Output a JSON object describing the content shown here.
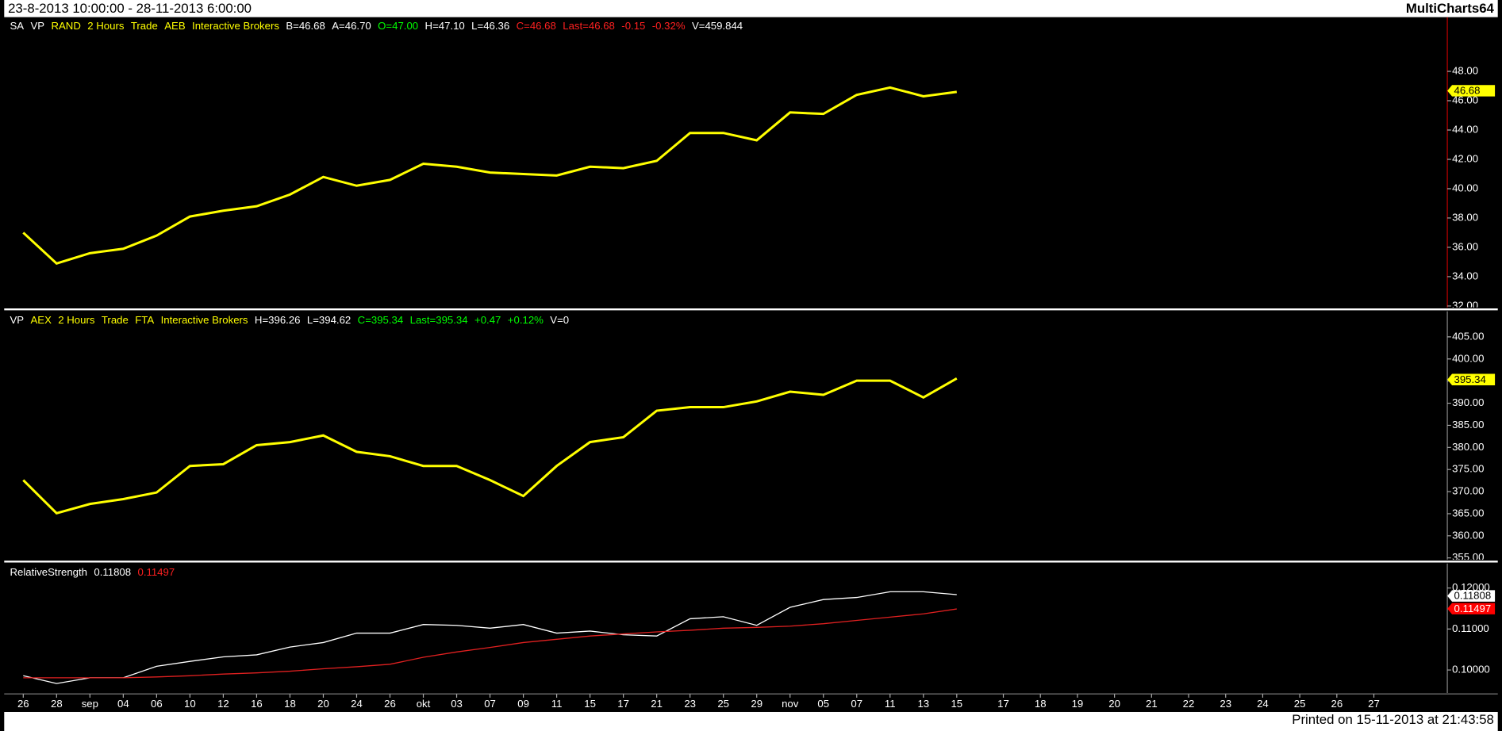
{
  "header": {
    "range": "23-8-2013 10:00:00 - 28-11-2013 6:00:00",
    "app": "MultiCharts64"
  },
  "footer": "Printed on 15-11-2013 at 21:43:58",
  "chart_data": [
    {
      "type": "line",
      "legend": [
        {
          "text": "SA",
          "color": "#ffffff"
        },
        {
          "text": "VP",
          "color": "#ffffff"
        },
        {
          "text": "RAND",
          "color": "#ffff00"
        },
        {
          "text": "2 Hours",
          "color": "#ffff00"
        },
        {
          "text": "Trade",
          "color": "#ffff00"
        },
        {
          "text": "AEB",
          "color": "#ffff00"
        },
        {
          "text": "Interactive Brokers",
          "color": "#ffff00"
        },
        {
          "text": "B=46.68",
          "color": "#ffffff"
        },
        {
          "text": "A=46.70",
          "color": "#ffffff"
        },
        {
          "text": "O=47.00",
          "color": "#00ff00"
        },
        {
          "text": "H=47.10",
          "color": "#ffffff"
        },
        {
          "text": "L=46.36",
          "color": "#ffffff"
        },
        {
          "text": "C=46.68",
          "color": "#ff2020"
        },
        {
          "text": "Last=46.68",
          "color": "#ff2020"
        },
        {
          "text": "-0.15",
          "color": "#ff2020"
        },
        {
          "text": "-0.32%",
          "color": "#ff2020"
        },
        {
          "text": "V=459.844",
          "color": "#ffffff"
        }
      ],
      "ylim": [
        31.9,
        51.7
      ],
      "yticks": [
        {
          "value": 32,
          "label": "32.00"
        },
        {
          "value": 34,
          "label": "34.00"
        },
        {
          "value": 36,
          "label": "36.00"
        },
        {
          "value": 38,
          "label": "38.00"
        },
        {
          "value": 40,
          "label": "40.00"
        },
        {
          "value": 42,
          "label": "42.00"
        },
        {
          "value": 44,
          "label": "44.00"
        },
        {
          "value": 46,
          "label": "46.00"
        },
        {
          "value": 48,
          "label": "48.00"
        }
      ],
      "series": [
        {
          "color": "#ffff00",
          "values": [
            37.0,
            34.9,
            35.6,
            35.9,
            36.8,
            38.1,
            38.5,
            38.8,
            39.6,
            40.8,
            40.2,
            40.6,
            41.7,
            41.5,
            41.1,
            41.0,
            40.9,
            41.5,
            41.4,
            41.9,
            43.8,
            43.8,
            43.3,
            45.2,
            45.1,
            46.4,
            46.9,
            46.3,
            46.6,
            null,
            null,
            null,
            null,
            null,
            null,
            null,
            null,
            null,
            null,
            null
          ]
        }
      ],
      "markers": [
        {
          "value": 46.68,
          "label": "46.68",
          "color": "#ffff00",
          "text_color": "#000000"
        }
      ]
    },
    {
      "type": "line",
      "legend": [
        {
          "text": "VP",
          "color": "#ffffff"
        },
        {
          "text": "AEX",
          "color": "#ffff00"
        },
        {
          "text": "2 Hours",
          "color": "#ffff00"
        },
        {
          "text": "Trade",
          "color": "#ffff00"
        },
        {
          "text": "FTA",
          "color": "#ffff00"
        },
        {
          "text": "Interactive Brokers",
          "color": "#ffff00"
        },
        {
          "text": "H=396.26",
          "color": "#ffffff"
        },
        {
          "text": "L=394.62",
          "color": "#ffffff"
        },
        {
          "text": "C=395.34",
          "color": "#00ff00"
        },
        {
          "text": "Last=395.34",
          "color": "#00ff00"
        },
        {
          "text": "+0.47",
          "color": "#00ff00"
        },
        {
          "text": "+0.12%",
          "color": "#00ff00"
        },
        {
          "text": "V=0",
          "color": "#ffffff"
        }
      ],
      "ylim": [
        354.6,
        410.8
      ],
      "yticks": [
        {
          "value": 355,
          "label": "355.00"
        },
        {
          "value": 360,
          "label": "360.00"
        },
        {
          "value": 365,
          "label": "365.00"
        },
        {
          "value": 370,
          "label": "370.00"
        },
        {
          "value": 375,
          "label": "375.00"
        },
        {
          "value": 380,
          "label": "380.00"
        },
        {
          "value": 385,
          "label": "385.00"
        },
        {
          "value": 390,
          "label": "390.00"
        },
        {
          "value": 395,
          "label": "395.00"
        },
        {
          "value": 400,
          "label": "400.00"
        },
        {
          "value": 405,
          "label": "405.00"
        }
      ],
      "series": [
        {
          "color": "#ffff00",
          "values": [
            372.6,
            365.1,
            367.2,
            368.3,
            369.8,
            375.8,
            376.2,
            380.5,
            381.2,
            382.7,
            379.0,
            378.0,
            375.8,
            375.8,
            372.6,
            369.0,
            375.8,
            381.2,
            382.3,
            388.3,
            389.1,
            389.1,
            390.4,
            392.6,
            391.9,
            395.1,
            395.1,
            391.3,
            395.6,
            null,
            null,
            null,
            null,
            null,
            null,
            null,
            null,
            null,
            null,
            null
          ]
        }
      ],
      "markers": [
        {
          "value": 395.34,
          "label": "395.34",
          "color": "#ffff00",
          "text_color": "#000000"
        }
      ]
    },
    {
      "type": "line",
      "legend": [
        {
          "text": "RelativeStrength",
          "color": "#ffffff"
        },
        {
          "text": "0.11808",
          "color": "#ffffff"
        },
        {
          "text": "0.11497",
          "color": "#ff2020"
        }
      ],
      "categories": [
        "26",
        "28",
        "sep",
        "04",
        "06",
        "10",
        "12",
        "16",
        "18",
        "20",
        "24",
        "26",
        "okt",
        "03",
        "07",
        "09",
        "11",
        "15",
        "17",
        "21",
        "23",
        "25",
        "29",
        "nov",
        "05",
        "07",
        "11",
        "13",
        "15",
        "17",
        "18",
        "19",
        "20",
        "21",
        "22",
        "23",
        "24",
        "25",
        "26",
        "27"
      ],
      "ylim": [
        0.0944,
        0.126
      ],
      "yticks": [
        {
          "value": 0.1,
          "label": "0.10000"
        },
        {
          "value": 0.11,
          "label": "0.11000"
        },
        {
          "value": 0.12,
          "label": "0.12000"
        }
      ],
      "series": [
        {
          "color": "#ffffff",
          "values": [
            0.0986,
            0.0967,
            0.0981,
            0.0981,
            0.1009,
            0.1021,
            0.1032,
            0.1037,
            0.1056,
            0.1067,
            0.109,
            0.109,
            0.1111,
            0.1109,
            0.1102,
            0.1111,
            0.109,
            0.1095,
            0.1086,
            0.1083,
            0.1125,
            0.113,
            0.1109,
            0.1153,
            0.1172,
            0.1177,
            0.1191,
            0.1191,
            0.1184,
            null,
            null,
            null,
            null,
            null,
            null,
            null,
            null,
            null,
            null,
            null
          ]
        },
        {
          "color": "#e02020",
          "values": [
            0.0981,
            0.0981,
            0.0981,
            0.0981,
            0.0983,
            0.0986,
            0.099,
            0.0993,
            0.0997,
            0.1003,
            0.1008,
            0.1014,
            0.1031,
            0.1044,
            0.1055,
            0.1067,
            0.1075,
            0.1083,
            0.1088,
            0.1093,
            0.1097,
            0.1102,
            0.1104,
            0.1107,
            0.1113,
            0.1121,
            0.1129,
            0.1137,
            0.1149,
            null,
            null,
            null,
            null,
            null,
            null,
            null,
            null,
            null,
            null,
            null
          ]
        }
      ],
      "markers": [
        {
          "value": 0.11808,
          "label": "0.11808",
          "color": "#ffffff",
          "text_color": "#000000"
        },
        {
          "value": 0.11497,
          "label": "0.11497",
          "color": "#ff0000",
          "text_color": "#ffffff"
        }
      ]
    }
  ]
}
